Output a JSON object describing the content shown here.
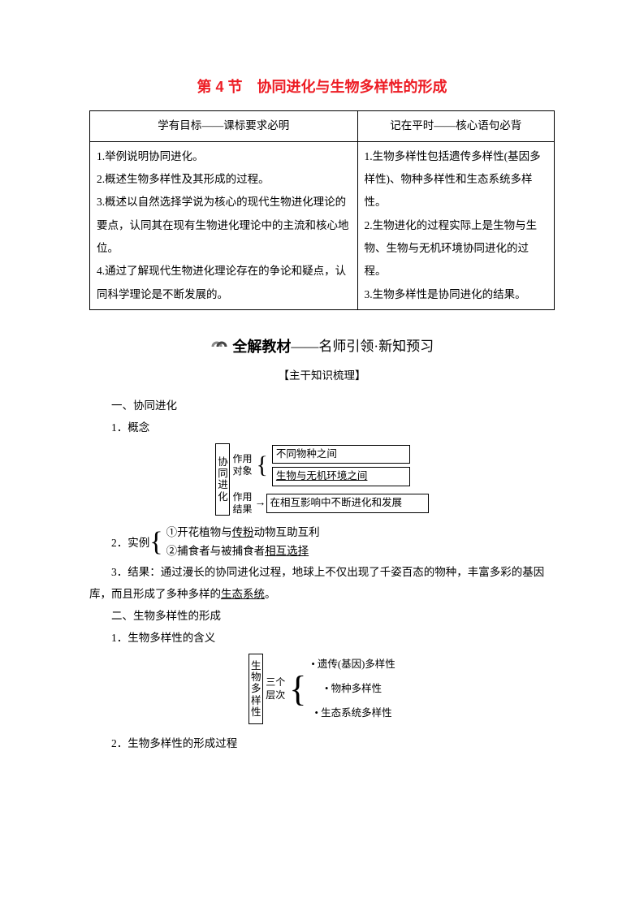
{
  "title": "第 4 节　协同进化与生物多样性的形成",
  "table": {
    "header_left": "学有目标——课标要求必明",
    "header_right": "记在平时——核心语句必背",
    "left_cell": "1.举例说明协同进化。\n2.概述生物多样性及其形成的过程。\n3.概述以自然选择学说为核心的现代生物进化理论的要点，认同其在现有生物进化理论中的主流和核心地位。\n4.通过了解现代生物进化理论存在的争论和疑点，认同科学理论是不断发展的。",
    "right_cell": "1.生物多样性包括遗传多样性(基因多样性)、物种多样性和生态系统多样性。\n2.生物进化的过程实际上是生物与生物、生物与无机环境协同进化的过程。\n3.生物多样性是协同进化的结果。"
  },
  "banner": {
    "strong": "全解教材",
    "dash": "——",
    "sub": "名师引领·新知预习"
  },
  "subheader": "【主干知识梳理】",
  "sec1": {
    "h": "一、协同进化",
    "p1": "1．概念",
    "diagram1": {
      "vlabel": "协同进化",
      "mid_top1": "作用",
      "mid_top2": "对象",
      "mid_bot1": "作用",
      "mid_bot2": "结果",
      "box1": "不同物种之间",
      "box2": "生物与无机环境之间",
      "box3": "在相互影响中不断进化和发展"
    },
    "p2_label": "2．实例",
    "ex1_a": "①开花植物与",
    "ex1_u": "传粉",
    "ex1_b": "动物互助互利",
    "ex2_a": "②捕食者与被捕食者",
    "ex2_u": "相互选择",
    "p3_a": "3．结果：通过漫长的协同进化过程，地球上不仅出现了千姿百态的物种，丰富多彩的基因库，而且形成了多种多样的",
    "p3_u": "生态系统",
    "p3_b": "。"
  },
  "sec2": {
    "h": "二、生物多样性的形成",
    "p1": "1．生物多样性的含义",
    "diagram2": {
      "vlabel": "生物多样性",
      "mid1": "三个",
      "mid2": "层次",
      "b1": "遗传(基因)多样性",
      "b2": "物种多样性",
      "b3": "生态系统多样性"
    },
    "p2": "2．生物多样性的形成过程"
  },
  "colors": {
    "title": "#ed1c24",
    "text": "#000000",
    "border": "#000000",
    "bg": "#ffffff"
  }
}
